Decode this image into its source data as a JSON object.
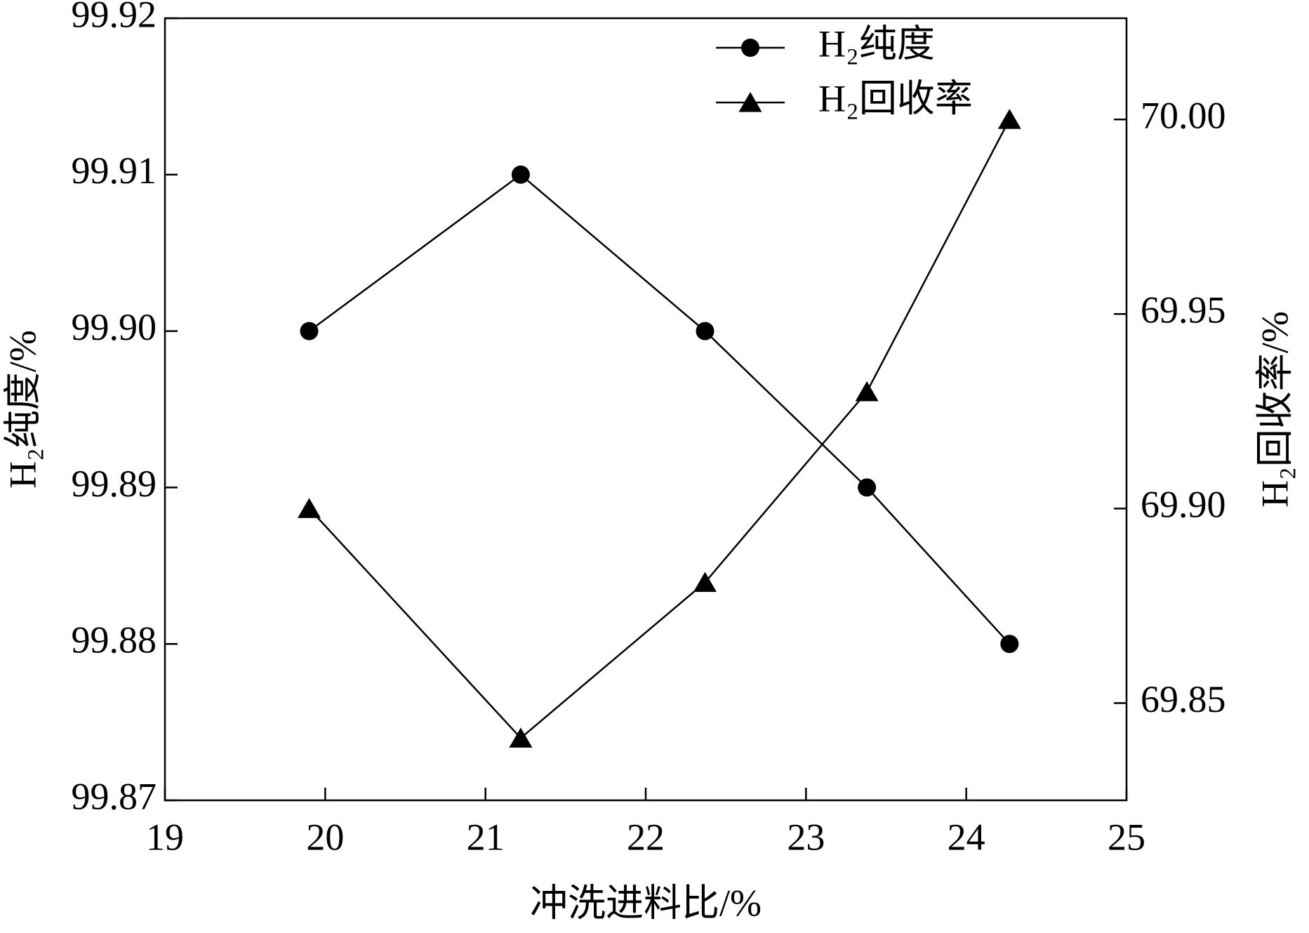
{
  "chart_data": {
    "type": "line",
    "x_label": "冲洗进料比/%",
    "y_label": "H₂纯度/%",
    "y2_label": "H₂回收率/%",
    "x": [
      19.9,
      21.22,
      22.37,
      23.38,
      24.27
    ],
    "xlim": [
      19,
      25
    ],
    "xticks": [
      19,
      20,
      21,
      22,
      23,
      24,
      25
    ],
    "ylim": [
      99.87,
      99.92
    ],
    "yticks": [
      99.87,
      99.88,
      99.89,
      {
        "value": 99.9,
        "label": "99.90"
      },
      99.91,
      99.92
    ],
    "y2lim": [
      69.825,
      70.026
    ],
    "y2ticks": [
      69.85,
      {
        "value": 69.9,
        "label": "69.90"
      },
      69.95,
      {
        "value": 70,
        "label": "70.00"
      }
    ],
    "legend": "top-right",
    "series": [
      {
        "name": "H₂纯度",
        "color": "#000000",
        "marker": "circle",
        "values": [
          99.9,
          99.91,
          99.9,
          99.89,
          99.88
        ]
      },
      {
        "name": "H₂回收率",
        "color": "#000000",
        "marker": "triangle",
        "axis": "y2",
        "values": [
          69.9,
          69.841,
          69.881,
          69.93,
          70.0
        ]
      }
    ]
  }
}
